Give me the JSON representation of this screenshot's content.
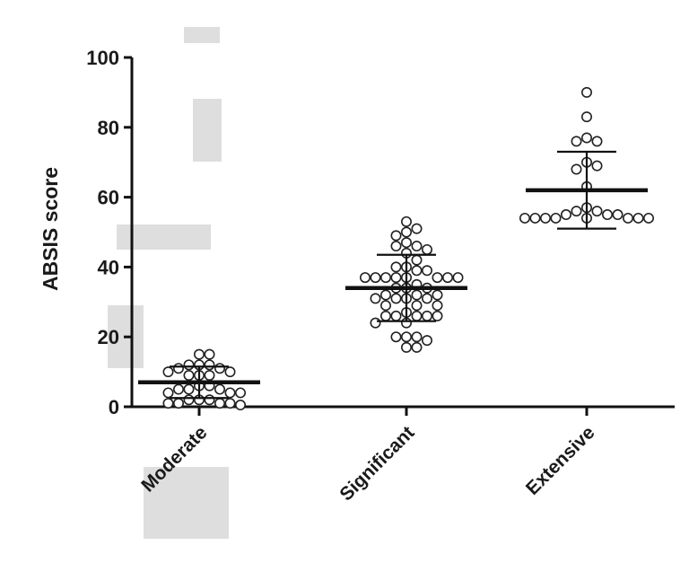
{
  "chart_data": {
    "type": "scatter",
    "title": "",
    "xlabel": "",
    "ylabel": "ABSIS score",
    "ylim": [
      0,
      100
    ],
    "yticks": [
      0,
      20,
      40,
      60,
      80,
      100
    ],
    "categories": [
      "Moderate",
      "Significant",
      "Extensive"
    ],
    "series": [
      {
        "category": "Moderate",
        "mean": 7,
        "sd": 4.5,
        "values": [
          15,
          15,
          12,
          12,
          12,
          11,
          11,
          10,
          10,
          9,
          9,
          9,
          6,
          6,
          5,
          5,
          5,
          4,
          4,
          4,
          2,
          2,
          2,
          1,
          1,
          1,
          1,
          0.5
        ]
      },
      {
        "category": "Significant",
        "mean": 34,
        "sd": 9.5,
        "values": [
          53,
          51,
          50,
          49,
          47,
          46,
          46,
          45,
          44,
          42,
          40,
          40,
          39,
          39,
          37,
          37,
          37,
          37,
          37,
          37,
          37,
          37,
          35,
          34,
          34,
          34,
          32,
          32,
          32,
          31,
          31,
          31,
          31,
          29,
          29,
          29,
          27,
          26,
          26,
          26,
          26,
          26,
          24,
          24,
          20,
          20,
          20,
          19,
          17,
          17
        ]
      },
      {
        "category": "Extensive",
        "mean": 62,
        "sd": 11,
        "values": [
          90,
          83,
          77,
          76,
          76,
          70,
          69,
          68,
          63,
          57,
          56,
          56,
          55,
          55,
          55,
          54,
          54,
          54,
          54,
          54,
          54,
          54,
          54
        ]
      }
    ],
    "grid": false,
    "legend": "none"
  }
}
